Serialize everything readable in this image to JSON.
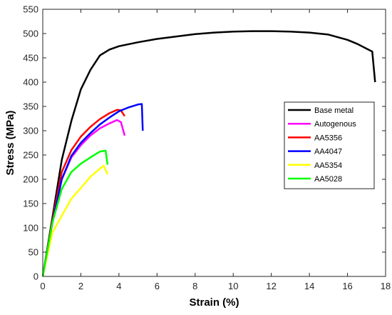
{
  "chart_data": {
    "type": "line",
    "xlabel": "Strain (%)",
    "ylabel": "Stress (MPa)",
    "xlim": [
      0,
      18
    ],
    "ylim": [
      0,
      550
    ],
    "xticks": [
      "0",
      "2",
      "4",
      "6",
      "8",
      "10",
      "12",
      "14",
      "16",
      "18"
    ],
    "yticks": [
      "0",
      "50",
      "100",
      "150",
      "200",
      "250",
      "300",
      "350",
      "400",
      "450",
      "500",
      "550"
    ],
    "grid": false,
    "legend": "right",
    "series": [
      {
        "name": "Base metal",
        "color": "#000000",
        "points": [
          [
            0,
            0
          ],
          [
            0.5,
            120
          ],
          [
            1,
            240
          ],
          [
            1.5,
            320
          ],
          [
            2,
            385
          ],
          [
            2.5,
            425
          ],
          [
            3,
            455
          ],
          [
            3.5,
            467
          ],
          [
            4,
            474
          ],
          [
            5,
            482
          ],
          [
            6,
            489
          ],
          [
            7,
            494
          ],
          [
            8,
            499
          ],
          [
            9,
            502
          ],
          [
            10,
            504
          ],
          [
            11,
            505
          ],
          [
            12,
            505
          ],
          [
            13,
            504
          ],
          [
            14,
            502
          ],
          [
            15,
            498
          ],
          [
            16,
            487
          ],
          [
            16.5,
            479
          ],
          [
            17,
            469
          ],
          [
            17.3,
            463
          ],
          [
            17.45,
            400
          ]
        ]
      },
      {
        "name": "Autogenous",
        "color": "#ff00ff",
        "points": [
          [
            0,
            0
          ],
          [
            0.5,
            110
          ],
          [
            1,
            200
          ],
          [
            1.5,
            245
          ],
          [
            2,
            270
          ],
          [
            2.5,
            290
          ],
          [
            3,
            305
          ],
          [
            3.5,
            315
          ],
          [
            3.9,
            322
          ],
          [
            4.1,
            318
          ],
          [
            4.3,
            290
          ]
        ]
      },
      {
        "name": "AA5356",
        "color": "#ff0000",
        "points": [
          [
            0,
            0
          ],
          [
            0.5,
            115
          ],
          [
            1,
            215
          ],
          [
            1.5,
            260
          ],
          [
            2,
            288
          ],
          [
            2.5,
            308
          ],
          [
            3,
            324
          ],
          [
            3.5,
            336
          ],
          [
            3.9,
            343
          ],
          [
            4.1,
            342
          ],
          [
            4.3,
            330
          ]
        ]
      },
      {
        "name": "AA4047",
        "color": "#0000ff",
        "points": [
          [
            0,
            0
          ],
          [
            0.5,
            110
          ],
          [
            1,
            200
          ],
          [
            1.5,
            248
          ],
          [
            2,
            275
          ],
          [
            2.5,
            295
          ],
          [
            3,
            313
          ],
          [
            3.5,
            327
          ],
          [
            4,
            340
          ],
          [
            4.5,
            348
          ],
          [
            5,
            354
          ],
          [
            5.2,
            355
          ],
          [
            5.25,
            300
          ]
        ]
      },
      {
        "name": "AA5354",
        "color": "#ffff00",
        "points": [
          [
            0,
            0
          ],
          [
            0.5,
            90
          ],
          [
            1,
            125
          ],
          [
            1.5,
            160
          ],
          [
            2,
            182
          ],
          [
            2.5,
            205
          ],
          [
            3,
            222
          ],
          [
            3.2,
            228
          ],
          [
            3.4,
            210
          ]
        ]
      },
      {
        "name": "AA5028",
        "color": "#00ff00",
        "points": [
          [
            0,
            0
          ],
          [
            0.5,
            110
          ],
          [
            1,
            180
          ],
          [
            1.5,
            215
          ],
          [
            2,
            232
          ],
          [
            2.5,
            245
          ],
          [
            3,
            257
          ],
          [
            3.3,
            259
          ],
          [
            3.4,
            230
          ]
        ]
      }
    ]
  }
}
